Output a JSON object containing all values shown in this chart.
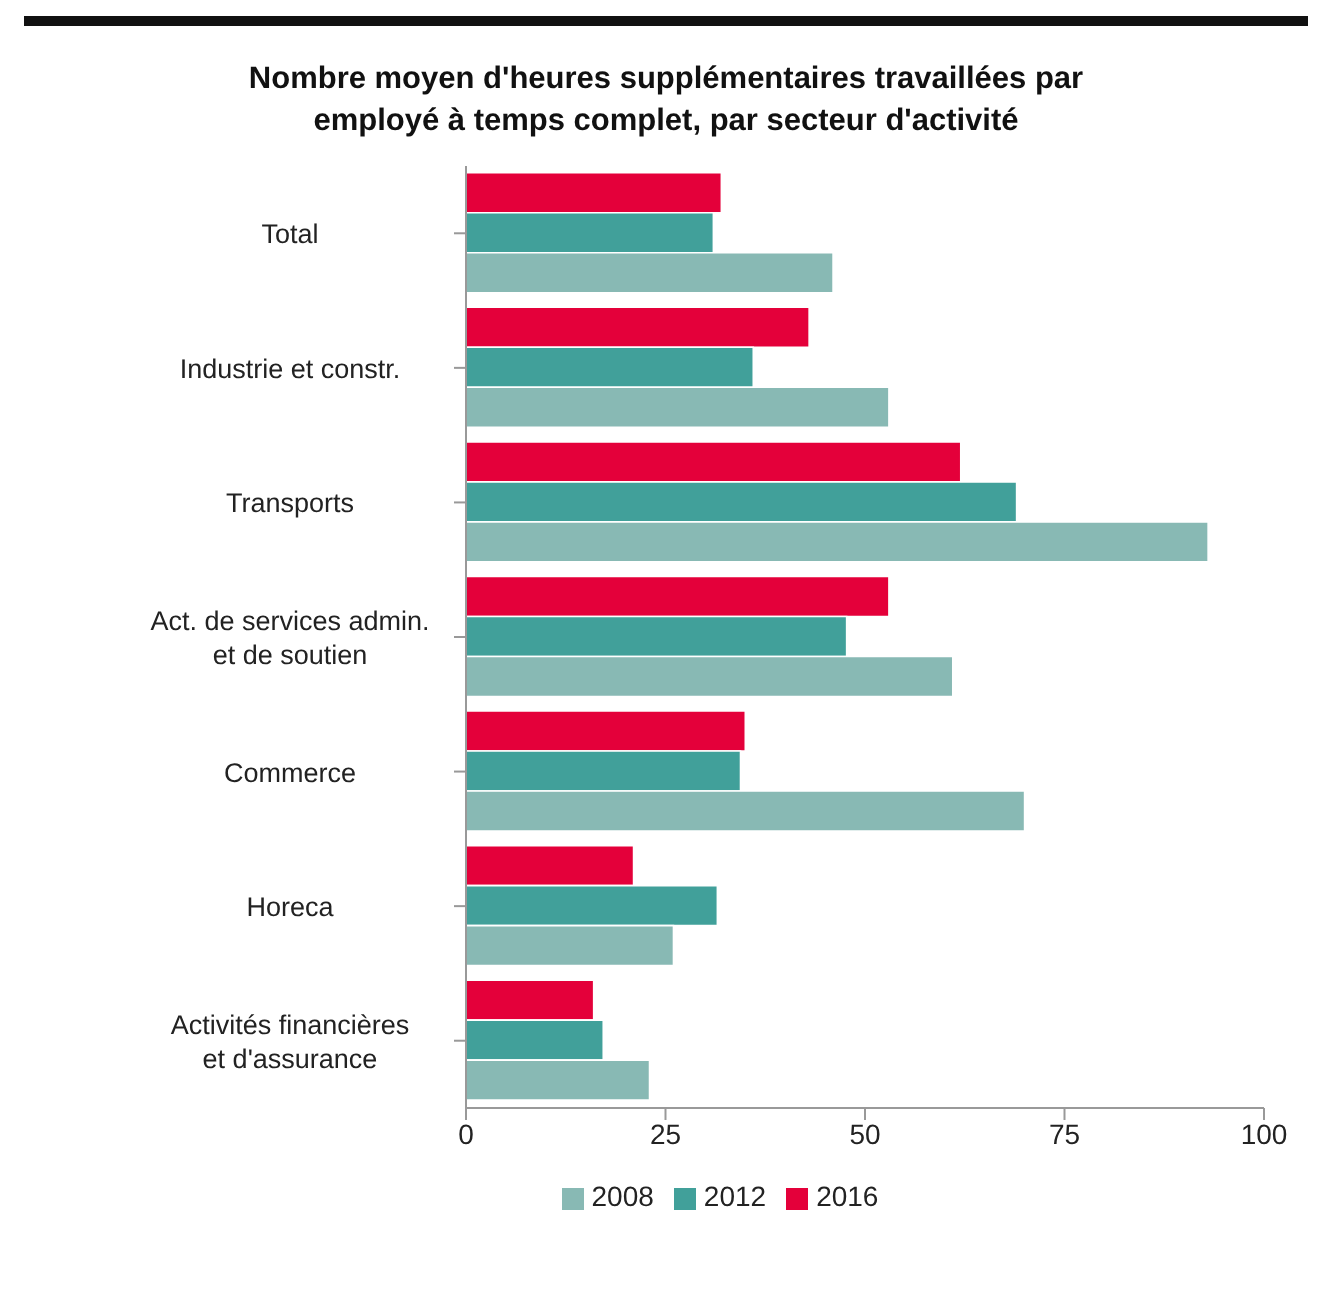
{
  "chart_data": {
    "type": "bar",
    "orientation": "horizontal",
    "title": "Nombre moyen d'heures supplémentaires travaillées par employé à temps complet, par secteur d'activité",
    "categories": [
      "Total",
      "Industrie et constr.",
      "Transports",
      "Act. de services admin. et de soutien",
      "Commerce",
      "Horeca",
      "Activités financières et d'assurance"
    ],
    "series": [
      {
        "name": "2016",
        "color": "#e4003a",
        "values": [
          32,
          43,
          62,
          53,
          35,
          21,
          16
        ]
      },
      {
        "name": "2012",
        "color": "#41a09a",
        "values": [
          31,
          36,
          69,
          47.7,
          34.4,
          31.5,
          17.2
        ]
      },
      {
        "name": "2008",
        "color": "#88b9b4",
        "values": [
          46,
          53,
          93,
          61,
          70,
          26,
          23
        ]
      }
    ],
    "xlim": [
      0,
      100
    ],
    "xticks": [
      0,
      25,
      50,
      75,
      100
    ],
    "grid": false,
    "legend": "bottom"
  }
}
